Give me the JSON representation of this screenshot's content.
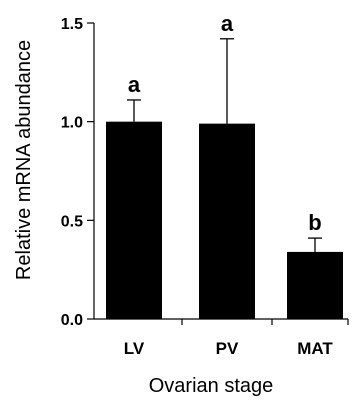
{
  "chart_data": {
    "type": "bar",
    "xlabel": "Ovarian stage",
    "ylabel": "Relative mRNA abundance",
    "categories": [
      "LV",
      "PV",
      "MAT"
    ],
    "values": [
      1.0,
      0.99,
      0.34
    ],
    "errors": [
      0.11,
      0.43,
      0.07
    ],
    "significance": [
      "a",
      "a",
      "b"
    ],
    "ylim": [
      0,
      1.5
    ],
    "yticks": [
      "0.0",
      "0.5",
      "1.0",
      "1.5"
    ],
    "grid": false,
    "bar_color": "#000000"
  }
}
